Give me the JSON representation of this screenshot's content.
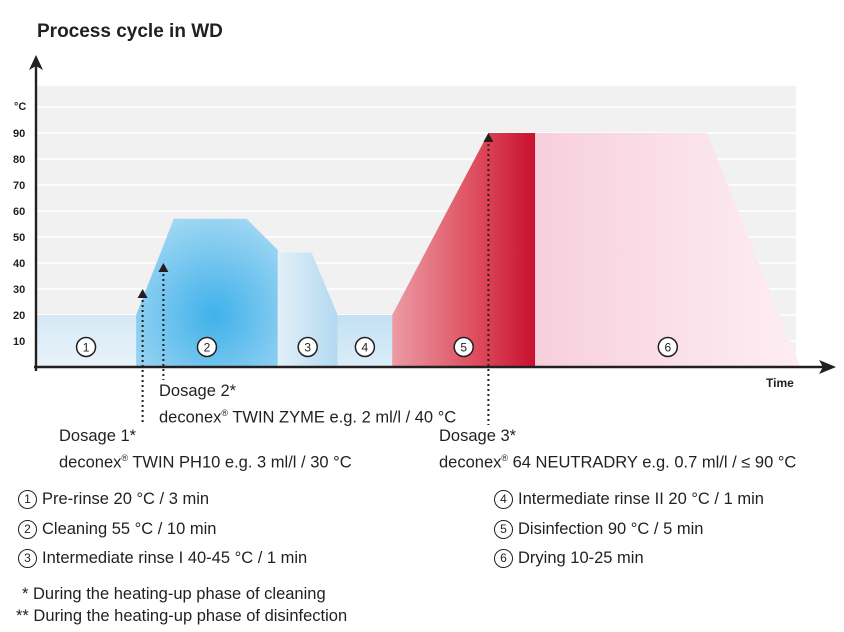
{
  "title": "Process cycle in WD",
  "chart_data": {
    "type": "area",
    "ylabel": "°C",
    "xlabel": "Time",
    "yticks": [
      "10",
      "20",
      "30",
      "40",
      "50",
      "60",
      "70",
      "80",
      "90"
    ],
    "ylim": [
      0,
      100
    ],
    "xlim": [
      0,
      30
    ],
    "grid": true,
    "phases": [
      {
        "num": "1",
        "points": [
          [
            0,
            20
          ],
          [
            3.85,
            20
          ]
        ],
        "color": "#dcebf6"
      },
      {
        "num": "2",
        "points": [
          [
            3.85,
            20
          ],
          [
            5.3,
            57
          ],
          [
            8.1,
            57
          ],
          [
            9.3,
            45
          ]
        ],
        "color": "#8fcdf0"
      },
      {
        "num": "3",
        "points": [
          [
            9.3,
            44
          ],
          [
            10.6,
            44
          ],
          [
            11.6,
            20
          ]
        ],
        "color": "#c9e3f3"
      },
      {
        "num": "4",
        "points": [
          [
            11.6,
            20
          ],
          [
            13.7,
            20
          ]
        ],
        "color": "#cfe6f4"
      },
      {
        "num": "5",
        "points": [
          [
            13.7,
            20
          ],
          [
            17.4,
            90
          ],
          [
            19.2,
            90
          ]
        ],
        "color": "#d22a3d"
      },
      {
        "num": "6",
        "points": [
          [
            19.2,
            90
          ],
          [
            25.8,
            90
          ],
          [
            29.4,
            0
          ]
        ],
        "color": "#f9dbe5"
      }
    ],
    "dosages": [
      {
        "label": "Dosage 1*",
        "product": "deconex",
        "rest": " TWIN PH10 e.g. 3 ml/l / 30 °C",
        "x": 4.1,
        "y": 30
      },
      {
        "label": "Dosage 2*",
        "product": "deconex",
        "rest": " TWIN ZYME e.g. 2 ml/l / 40 °C",
        "x": 4.9,
        "y": 40
      },
      {
        "label": "Dosage 3*",
        "product": "deconex",
        "rest": " 64 NEUTRADRY e.g. 0.7 ml/l / ≤ 90 °C",
        "x": 17.4,
        "y": 90
      }
    ]
  },
  "legend": [
    {
      "num": "1",
      "text": "Pre-rinse 20 °C / 3 min"
    },
    {
      "num": "2",
      "text": "Cleaning 55 °C / 10 min"
    },
    {
      "num": "3",
      "text": "Intermediate rinse I 40-45 °C / 1 min"
    },
    {
      "num": "4",
      "text": "Intermediate rinse II 20 °C / 1 min"
    },
    {
      "num": "5",
      "text": "Disinfection 90 °C / 5 min"
    },
    {
      "num": "6",
      "text": "Drying 10-25 min"
    }
  ],
  "footnotes": [
    "* During the heating-up phase of cleaning",
    "** During the heating-up phase of disinfection"
  ]
}
